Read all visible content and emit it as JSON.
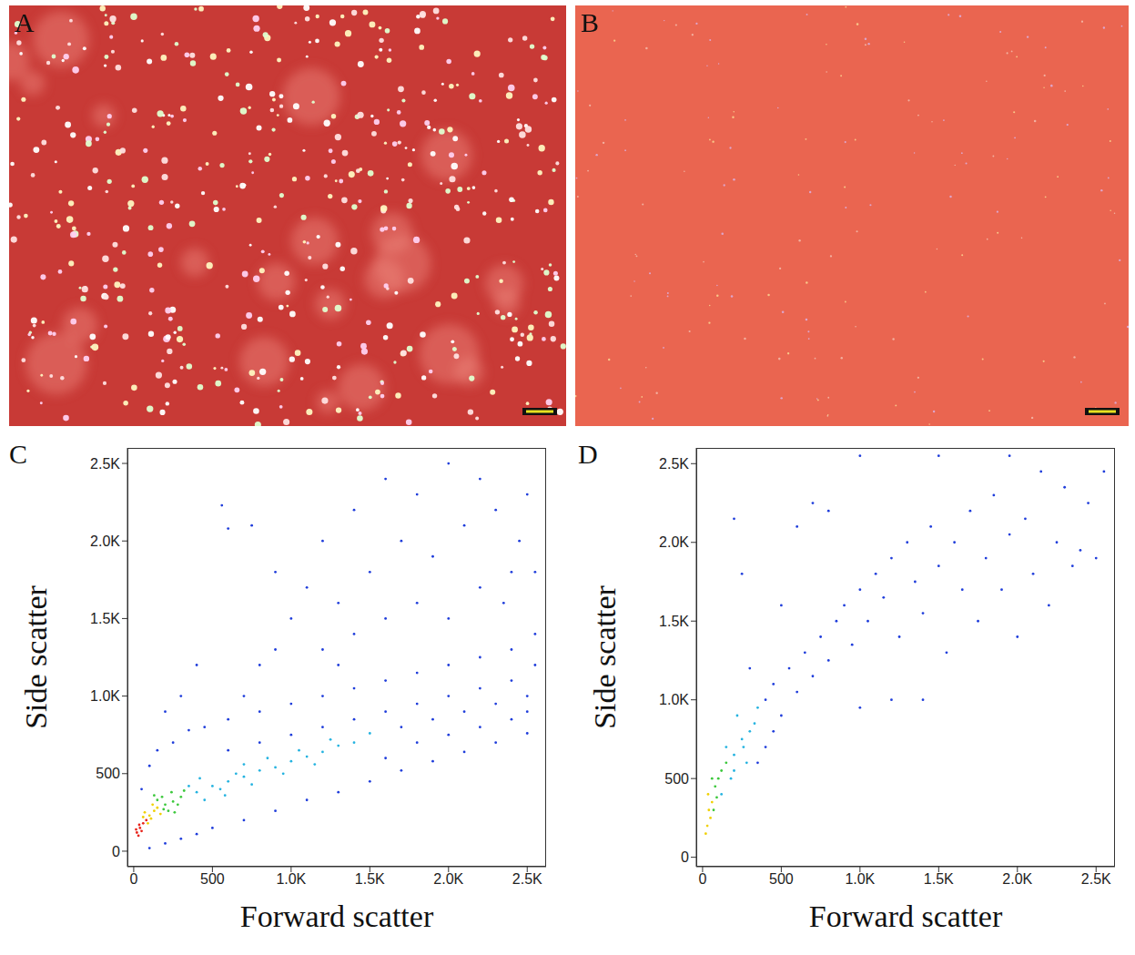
{
  "images": [
    {
      "label": "A"
    },
    {
      "label": "B"
    }
  ],
  "chart_data": [
    {
      "label": "C",
      "type": "scatter",
      "x_label": "Forward scatter",
      "y_label": "Side scatter",
      "xlim": [
        -40,
        2620
      ],
      "ylim": [
        -100,
        2600
      ],
      "xticks": [
        0,
        500,
        {
          "value": 1000,
          "label": "1.0K"
        },
        {
          "value": 1500,
          "label": "1.5K"
        },
        {
          "value": 2000,
          "label": "2.0K"
        },
        {
          "value": 2500,
          "label": "2.5K"
        }
      ],
      "yticks": [
        0,
        500,
        {
          "value": 1000,
          "label": "1.0K"
        },
        {
          "value": 1500,
          "label": "1.5K"
        },
        {
          "value": 2000,
          "label": "2.0K"
        },
        {
          "value": 2500,
          "label": "2.5K"
        }
      ],
      "series": [
        {
          "color": "#1f3ddb",
          "points": [
            [
              100,
              20
            ],
            [
              200,
              50
            ],
            [
              300,
              80
            ],
            [
              400,
              110
            ],
            [
              500,
              150
            ],
            [
              700,
              200
            ],
            [
              900,
              260
            ],
            [
              1100,
              330
            ],
            [
              1300,
              380
            ],
            [
              1500,
              450
            ],
            [
              1700,
              520
            ],
            [
              1900,
              580
            ],
            [
              2100,
              640
            ],
            [
              2300,
              700
            ],
            [
              2500,
              760
            ],
            [
              50,
              400
            ],
            [
              100,
              550
            ],
            [
              150,
              650
            ],
            [
              250,
              700
            ],
            [
              350,
              780
            ],
            [
              450,
              800
            ],
            [
              600,
              850
            ],
            [
              800,
              900
            ],
            [
              1000,
              950
            ],
            [
              1200,
              1000
            ],
            [
              1400,
              1050
            ],
            [
              1600,
              1100
            ],
            [
              1800,
              1150
            ],
            [
              2000,
              1200
            ],
            [
              2200,
              1250
            ],
            [
              2400,
              1300
            ],
            [
              2550,
              1400
            ],
            [
              600,
              650
            ],
            [
              800,
              700
            ],
            [
              1000,
              750
            ],
            [
              1200,
              800
            ],
            [
              1400,
              850
            ],
            [
              1600,
              900
            ],
            [
              1800,
              950
            ],
            [
              2000,
              1000
            ],
            [
              2200,
              1050
            ],
            [
              2400,
              1100
            ],
            [
              1700,
              800
            ],
            [
              1900,
              850
            ],
            [
              2100,
              900
            ],
            [
              2300,
              950
            ],
            [
              2500,
              1000
            ],
            [
              1600,
              600
            ],
            [
              1800,
              700
            ],
            [
              2000,
              750
            ],
            [
              2200,
              800
            ],
            [
              2400,
              850
            ],
            [
              2500,
              900
            ],
            [
              1200,
              1300
            ],
            [
              1400,
              1400
            ],
            [
              1600,
              1500
            ],
            [
              1800,
              1600
            ],
            [
              2000,
              1500
            ],
            [
              2200,
              1700
            ],
            [
              2400,
              1800
            ],
            [
              1300,
              1600
            ],
            [
              1500,
              1800
            ],
            [
              1700,
              2000
            ],
            [
              1900,
              1900
            ],
            [
              2100,
              2100
            ],
            [
              2300,
              2200
            ],
            [
              2450,
              2000
            ],
            [
              1000,
              1500
            ],
            [
              900,
              1300
            ],
            [
              1100,
              1700
            ],
            [
              1400,
              2200
            ],
            [
              1800,
              2300
            ],
            [
              2200,
              2400
            ],
            [
              2000,
              2500
            ],
            [
              750,
              2100
            ],
            [
              560,
              2230
            ],
            [
              600,
              2080
            ],
            [
              900,
              1800
            ],
            [
              1200,
              2000
            ],
            [
              1600,
              2400
            ],
            [
              2350,
              1600
            ],
            [
              2500,
              2300
            ],
            [
              800,
              1200
            ],
            [
              700,
              1000
            ],
            [
              1300,
              1200
            ],
            [
              2550,
              1200
            ],
            [
              2550,
              1800
            ],
            [
              300,
              1000
            ],
            [
              400,
              1200
            ],
            [
              200,
              900
            ]
          ]
        },
        {
          "color": "#25b3e0",
          "points": [
            [
              400,
              380
            ],
            [
              500,
              420
            ],
            [
              600,
              450
            ],
            [
              700,
              480
            ],
            [
              800,
              520
            ],
            [
              900,
              540
            ],
            [
              1000,
              580
            ],
            [
              1100,
              610
            ],
            [
              1200,
              640
            ],
            [
              1300,
              680
            ],
            [
              450,
              330
            ],
            [
              550,
              400
            ],
            [
              650,
              500
            ],
            [
              750,
              430
            ],
            [
              850,
              600
            ],
            [
              950,
              500
            ],
            [
              1050,
              650
            ],
            [
              1150,
              560
            ],
            [
              350,
              420
            ],
            [
              420,
              470
            ],
            [
              580,
              360
            ],
            [
              700,
              560
            ],
            [
              1250,
              720
            ],
            [
              1400,
              700
            ],
            [
              1500,
              760
            ]
          ]
        },
        {
          "color": "#3cc83c",
          "points": [
            [
              200,
              300
            ],
            [
              250,
              320
            ],
            [
              180,
              350
            ],
            [
              300,
              350
            ],
            [
              220,
              260
            ],
            [
              150,
              330
            ],
            [
              280,
              300
            ],
            [
              240,
              380
            ],
            [
              190,
              270
            ],
            [
              320,
              390
            ],
            [
              130,
              360
            ],
            [
              260,
              250
            ]
          ]
        },
        {
          "color": "#f0d000",
          "points": [
            [
              100,
              230
            ],
            [
              130,
              260
            ],
            [
              70,
              250
            ],
            [
              150,
              280
            ],
            [
              90,
              180
            ],
            [
              120,
              300
            ],
            [
              60,
              220
            ],
            [
              170,
              240
            ],
            [
              110,
              210
            ]
          ]
        },
        {
          "color": "#e8231a",
          "points": [
            [
              20,
              120
            ],
            [
              40,
              150
            ],
            [
              30,
              100
            ],
            [
              60,
              180
            ],
            [
              15,
              140
            ],
            [
              50,
              130
            ],
            [
              80,
              200
            ],
            [
              35,
              170
            ]
          ]
        }
      ]
    },
    {
      "label": "D",
      "type": "scatter",
      "x_label": "Forward scatter",
      "y_label": "Side scatter",
      "xlim": [
        -40,
        2620
      ],
      "ylim": [
        -60,
        2600
      ],
      "xticks": [
        0,
        500,
        {
          "value": 1000,
          "label": "1.0K"
        },
        {
          "value": 1500,
          "label": "1.5K"
        },
        {
          "value": 2000,
          "label": "2.0K"
        },
        {
          "value": 2500,
          "label": "2.5K"
        }
      ],
      "yticks": [
        0,
        500,
        {
          "value": 1000,
          "label": "1.0K"
        },
        {
          "value": 1500,
          "label": "1.5K"
        },
        {
          "value": 2000,
          "label": "2.0K"
        },
        {
          "value": 2500,
          "label": "2.5K"
        }
      ],
      "series": [
        {
          "color": "#1f3ddb",
          "points": [
            [
              400,
              1000
            ],
            [
              450,
              1100
            ],
            [
              500,
              900
            ],
            [
              550,
              1200
            ],
            [
              600,
              1050
            ],
            [
              650,
              1300
            ],
            [
              700,
              1150
            ],
            [
              750,
              1400
            ],
            [
              800,
              1250
            ],
            [
              850,
              1500
            ],
            [
              900,
              1600
            ],
            [
              950,
              1350
            ],
            [
              1000,
              1700
            ],
            [
              1050,
              1500
            ],
            [
              1100,
              1800
            ],
            [
              1150,
              1650
            ],
            [
              1200,
              1900
            ],
            [
              1250,
              1400
            ],
            [
              1300,
              2000
            ],
            [
              1350,
              1750
            ],
            [
              1400,
              1550
            ],
            [
              1450,
              2100
            ],
            [
              1500,
              1850
            ],
            [
              1550,
              1300
            ],
            [
              1600,
              2000
            ],
            [
              1650,
              1700
            ],
            [
              1700,
              2200
            ],
            [
              1750,
              1500
            ],
            [
              1800,
              1900
            ],
            [
              1850,
              2300
            ],
            [
              1900,
              1700
            ],
            [
              1950,
              2050
            ],
            [
              2000,
              1400
            ],
            [
              2050,
              2150
            ],
            [
              2100,
              1800
            ],
            [
              2150,
              2450
            ],
            [
              2200,
              1600
            ],
            [
              2250,
              2000
            ],
            [
              2300,
              2350
            ],
            [
              2350,
              1850
            ],
            [
              2400,
              1950
            ],
            [
              2450,
              2250
            ],
            [
              2500,
              1900
            ],
            [
              2550,
              2450
            ],
            [
              1200,
              1000
            ],
            [
              1000,
              950
            ],
            [
              1400,
              1000
            ],
            [
              800,
              2200
            ],
            [
              700,
              2250
            ],
            [
              600,
              2100
            ],
            [
              500,
              1600
            ],
            [
              400,
              700
            ],
            [
              450,
              800
            ],
            [
              350,
              600
            ],
            [
              300,
              1200
            ],
            [
              200,
              2150
            ],
            [
              250,
              1800
            ],
            [
              1500,
              2550
            ],
            [
              1950,
              2550
            ],
            [
              1000,
              2550
            ]
          ]
        },
        {
          "color": "#25b3e0",
          "points": [
            [
              200,
              650
            ],
            [
              250,
              750
            ],
            [
              180,
              500
            ],
            [
              300,
              800
            ],
            [
              220,
              900
            ],
            [
              150,
              700
            ],
            [
              280,
              600
            ],
            [
              330,
              850
            ],
            [
              120,
              400
            ],
            [
              260,
              700
            ],
            [
              350,
              950
            ],
            [
              200,
              550
            ]
          ]
        },
        {
          "color": "#3cc83c",
          "points": [
            [
              80,
              450
            ],
            [
              100,
              500
            ],
            [
              70,
              300
            ],
            [
              120,
              550
            ],
            [
              90,
              380
            ],
            [
              60,
              500
            ],
            [
              150,
              600
            ]
          ]
        },
        {
          "color": "#f0d000",
          "points": [
            [
              30,
              200
            ],
            [
              40,
              300
            ],
            [
              20,
              150
            ],
            [
              60,
              350
            ],
            [
              50,
              250
            ],
            [
              35,
              400
            ]
          ]
        }
      ]
    }
  ]
}
